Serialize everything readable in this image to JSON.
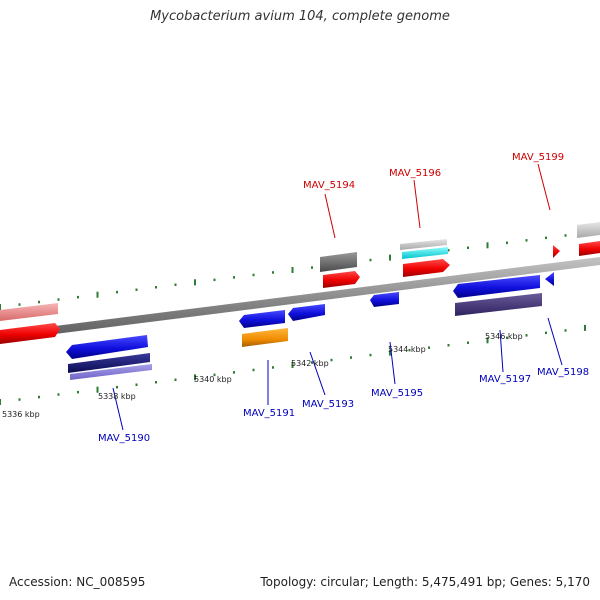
{
  "title": "Mycobacterium avium 104, complete genome",
  "footer": {
    "accession": "Accession: NC_008595",
    "info": "Topology: circular; Length: 5,475,491 bp; Genes: 5,170"
  },
  "scale_labels": [
    "5336 kbp",
    "5338 kbp",
    "5340 kbp",
    "5342 kbp",
    "5344 kbp",
    "5346 kbp"
  ],
  "genes": {
    "forward": [
      "MAV_5194",
      "MAV_5196",
      "MAV_5199"
    ],
    "reverse": [
      "MAV_5190",
      "MAV_5191",
      "MAV_5193",
      "MAV_5195",
      "MAV_5197",
      "MAV_5198"
    ]
  },
  "colors": {
    "forward_label": "#cc0000",
    "reverse_label": "#0000bb",
    "tick": "#2e7d32",
    "backbone": "#888888"
  }
}
